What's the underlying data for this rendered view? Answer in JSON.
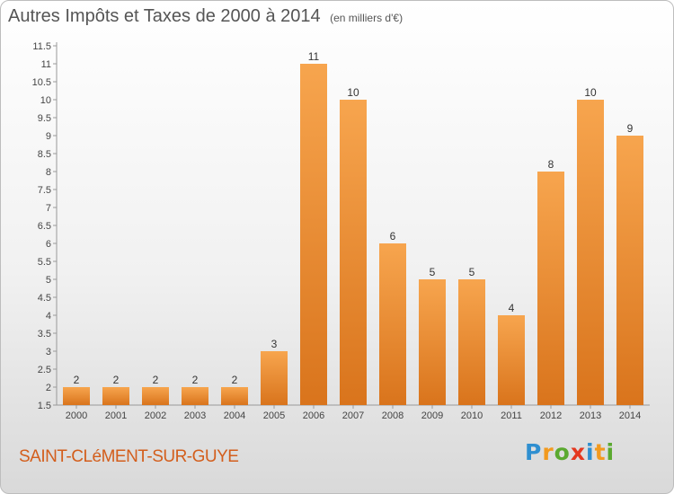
{
  "title": "Autres Impôts et Taxes de 2000 à 2014",
  "unit": "(en milliers d'€)",
  "commune": "SAINT-CLéMENT-SUR-GUYE",
  "logo": {
    "letters": [
      "P",
      "r",
      "o",
      "x",
      "i",
      "t",
      "i"
    ],
    "colors": [
      "#2f8fd0",
      "#f29a1f",
      "#5aa92f",
      "#e4381f",
      "#2f8fd0",
      "#f29a1f",
      "#5aa92f"
    ]
  },
  "colors": {
    "bar_light": "#f7a54e",
    "bar_dark": "#d9741c",
    "label": "#333333",
    "grid": "#cccccc"
  },
  "chart_data": {
    "type": "bar",
    "title": "Autres Impôts et Taxes de 2000 à 2014",
    "subtitle": "(en milliers d'€)",
    "categories": [
      "2000",
      "2001",
      "2002",
      "2003",
      "2004",
      "2005",
      "2006",
      "2007",
      "2008",
      "2009",
      "2010",
      "2011",
      "2012",
      "2013",
      "2014"
    ],
    "values": [
      2,
      2,
      2,
      2,
      2,
      3,
      11,
      10,
      6,
      5,
      5,
      4,
      8,
      10,
      9
    ],
    "data_labels": [
      "2",
      "2",
      "2",
      "2",
      "2",
      "3",
      "11",
      "10",
      "6",
      "5",
      "5",
      "4",
      "8",
      "10",
      "9"
    ],
    "ylim": [
      1.5,
      11.5
    ],
    "yticks": [
      "1.5",
      "2",
      "2.5",
      "3",
      "3.5",
      "4",
      "4.5",
      "5",
      "5.5",
      "6",
      "6.5",
      "7",
      "7.5",
      "8",
      "8.5",
      "9",
      "9.5",
      "10",
      "10.5",
      "11",
      "11.5"
    ],
    "xlabel": "",
    "ylabel": "",
    "grid": false
  }
}
